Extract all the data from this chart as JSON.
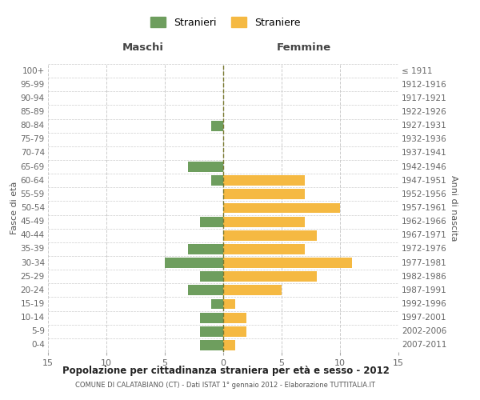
{
  "age_groups": [
    "0-4",
    "5-9",
    "10-14",
    "15-19",
    "20-24",
    "25-29",
    "30-34",
    "35-39",
    "40-44",
    "45-49",
    "50-54",
    "55-59",
    "60-64",
    "65-69",
    "70-74",
    "75-79",
    "80-84",
    "85-89",
    "90-94",
    "95-99",
    "100+"
  ],
  "birth_years": [
    "2007-2011",
    "2002-2006",
    "1997-2001",
    "1992-1996",
    "1987-1991",
    "1982-1986",
    "1977-1981",
    "1972-1976",
    "1967-1971",
    "1962-1966",
    "1957-1961",
    "1952-1956",
    "1947-1951",
    "1942-1946",
    "1937-1941",
    "1932-1936",
    "1927-1931",
    "1922-1926",
    "1917-1921",
    "1912-1916",
    "≤ 1911"
  ],
  "maschi": [
    2,
    2,
    2,
    1,
    3,
    2,
    5,
    3,
    0,
    2,
    0,
    0,
    1,
    3,
    0,
    0,
    1,
    0,
    0,
    0,
    0
  ],
  "femmine": [
    1,
    2,
    2,
    1,
    5,
    8,
    11,
    7,
    8,
    7,
    10,
    7,
    7,
    0,
    0,
    0,
    0,
    0,
    0,
    0,
    0
  ],
  "maschi_color": "#6e9e5e",
  "femmine_color": "#f5b942",
  "legend_maschi": "Stranieri",
  "legend_femmine": "Straniere",
  "xlabel_left": "Maschi",
  "xlabel_right": "Femmine",
  "ylabel_left": "Fasce di età",
  "ylabel_right": "Anni di nascita",
  "title": "Popolazione per cittadinanza straniera per età e sesso - 2012",
  "subtitle": "COMUNE DI CALATABIANO (CT) - Dati ISTAT 1° gennaio 2012 - Elaborazione TUTTITALIA.IT",
  "xlim": 15,
  "background_color": "#ffffff",
  "grid_color": "#cccccc",
  "center_line_color": "#7a7a30",
  "bar_height": 0.75
}
